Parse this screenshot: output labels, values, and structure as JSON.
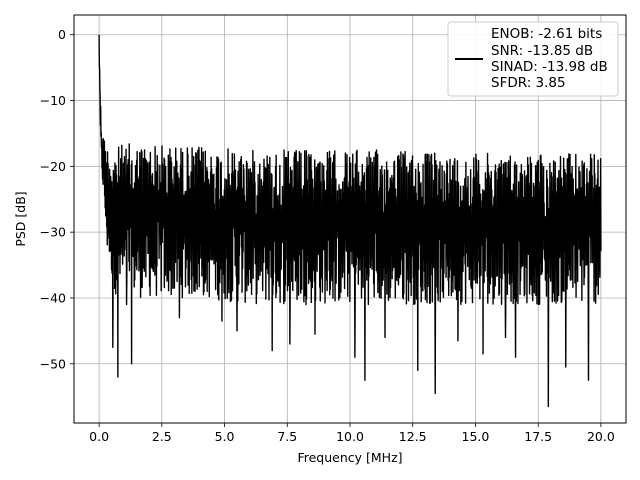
{
  "chart_data": {
    "type": "line",
    "title": "",
    "xlabel": "Frequency [MHz]",
    "ylabel": "PSD [dB]",
    "xlim": [
      -1.0,
      21.0
    ],
    "ylim": [
      -59,
      3
    ],
    "xticks": [
      0.0,
      2.5,
      5.0,
      7.5,
      10.0,
      12.5,
      15.0,
      17.5,
      20.0
    ],
    "xtick_labels": [
      "0.0",
      "2.5",
      "5.0",
      "7.5",
      "10.0",
      "12.5",
      "15.0",
      "17.5",
      "20.0"
    ],
    "yticks": [
      0,
      -10,
      -20,
      -30,
      -40,
      -50
    ],
    "ytick_labels": [
      "0",
      "−10",
      "−20",
      "−30",
      "−40",
      "−50"
    ],
    "grid": true,
    "legend_position": "top-right",
    "line_color": "#000000",
    "series": [
      {
        "legend_lines": [
          "ENOB: -2.61 bits",
          "SNR: -13.85 dB",
          "SINAD: -13.98 dB",
          "SFDR: 3.85"
        ],
        "envelope": {
          "x": [
            0.0,
            0.02,
            0.05,
            0.08,
            0.12,
            0.2,
            0.3,
            0.5,
            0.7,
            1.0,
            2.0,
            4.0,
            6.0,
            8.0,
            10.0,
            12.0,
            14.0,
            16.0,
            18.0,
            20.0
          ],
          "y_peak": [
            0,
            -4,
            -9,
            -12,
            -14,
            -15.5,
            -16.5,
            -17,
            -17,
            -16.5,
            -16.5,
            -17,
            -17.5,
            -17.5,
            -17.5,
            -17.5,
            -18,
            -18,
            -18,
            -18
          ],
          "y_floor": [
            -2,
            -8,
            -16,
            -20,
            -22,
            -26,
            -33,
            -37,
            -40,
            -40,
            -40,
            -40,
            -41,
            -41,
            -41,
            -41,
            -41,
            -41,
            -41,
            -41
          ]
        },
        "deep_dips": [
          {
            "x": 0.55,
            "y": -47.5
          },
          {
            "x": 0.75,
            "y": -52
          },
          {
            "x": 1.3,
            "y": -50
          },
          {
            "x": 1.1,
            "y": -41
          },
          {
            "x": 3.2,
            "y": -43
          },
          {
            "x": 4.9,
            "y": -43.5
          },
          {
            "x": 5.5,
            "y": -45
          },
          {
            "x": 6.9,
            "y": -48
          },
          {
            "x": 7.6,
            "y": -47
          },
          {
            "x": 8.6,
            "y": -45.5
          },
          {
            "x": 10.2,
            "y": -49
          },
          {
            "x": 10.6,
            "y": -52.5
          },
          {
            "x": 11.4,
            "y": -46
          },
          {
            "x": 12.7,
            "y": -51
          },
          {
            "x": 13.4,
            "y": -54.5
          },
          {
            "x": 14.3,
            "y": -46.5
          },
          {
            "x": 15.3,
            "y": -48.5
          },
          {
            "x": 16.2,
            "y": -46
          },
          {
            "x": 16.6,
            "y": -49
          },
          {
            "x": 17.9,
            "y": -56.5
          },
          {
            "x": 18.6,
            "y": -50.5
          },
          {
            "x": 19.5,
            "y": -52.5
          }
        ]
      }
    ]
  }
}
